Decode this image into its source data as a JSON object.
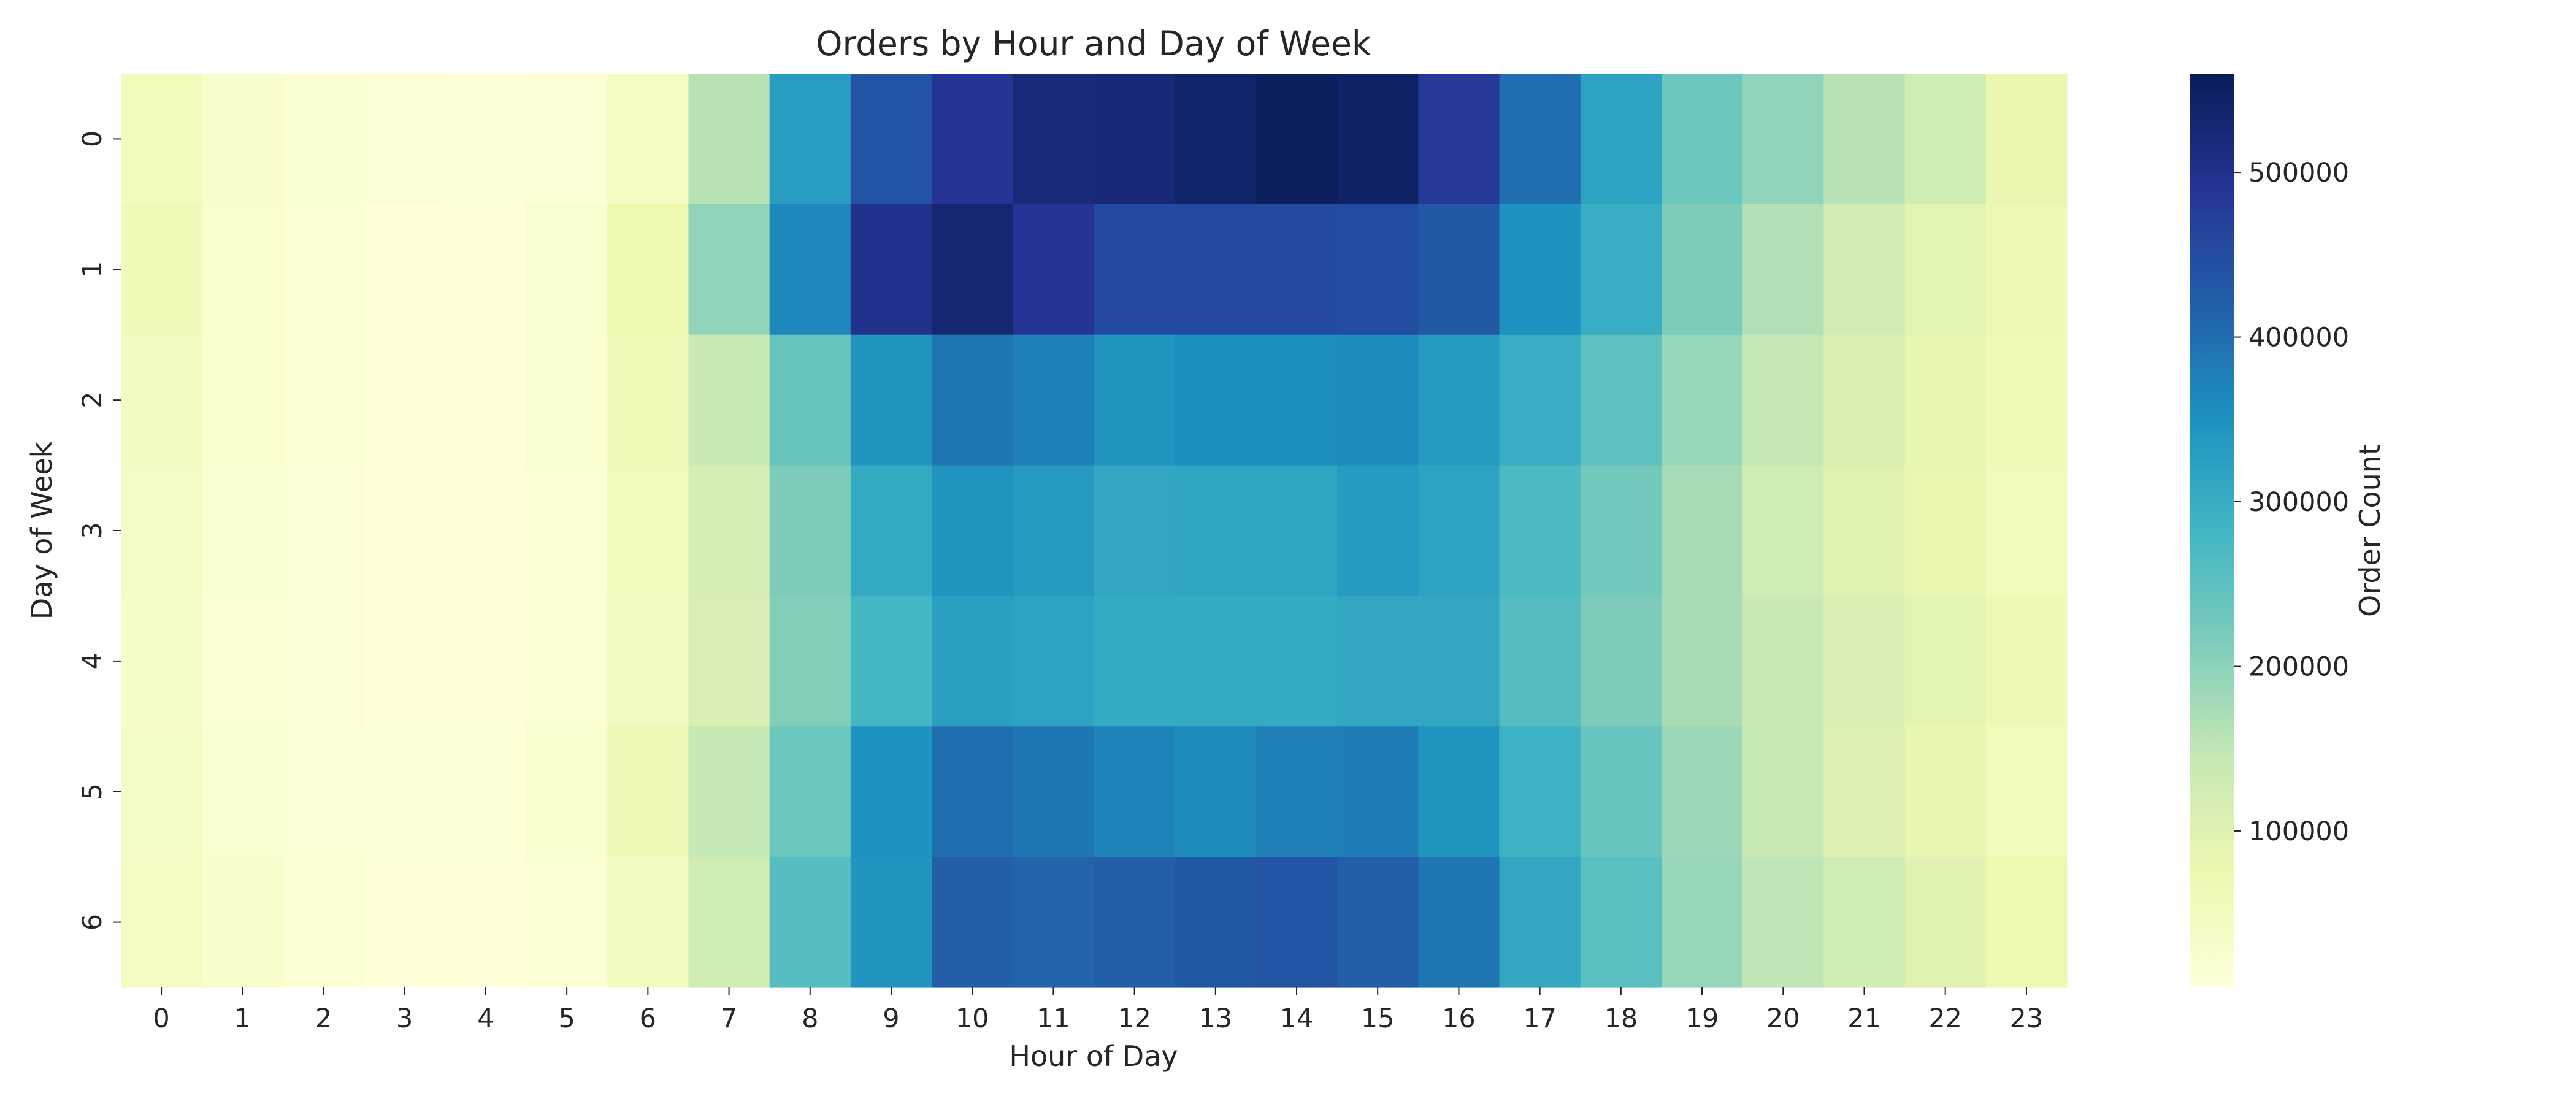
{
  "chart_data": {
    "type": "heatmap",
    "title": "Orders by Hour and Day of Week",
    "xlabel": "Hour of Day",
    "ylabel": "Day of Week",
    "x_categories": [
      "0",
      "1",
      "2",
      "3",
      "4",
      "5",
      "6",
      "7",
      "8",
      "9",
      "10",
      "11",
      "12",
      "13",
      "14",
      "15",
      "16",
      "17",
      "18",
      "19",
      "20",
      "21",
      "22",
      "23"
    ],
    "y_categories": [
      "0",
      "1",
      "2",
      "3",
      "4",
      "5",
      "6"
    ],
    "values": [
      [
        55000,
        30000,
        18000,
        10000,
        9000,
        12000,
        45000,
        160000,
        330000,
        440000,
        490000,
        520000,
        525000,
        540000,
        555000,
        545000,
        480000,
        400000,
        320000,
        235000,
        195000,
        160000,
        130000,
        80000
      ],
      [
        60000,
        25000,
        14000,
        5000,
        5000,
        20000,
        75000,
        195000,
        365000,
        500000,
        530000,
        490000,
        455000,
        455000,
        455000,
        450000,
        430000,
        350000,
        300000,
        215000,
        165000,
        125000,
        95000,
        65000
      ],
      [
        48000,
        22000,
        13000,
        5000,
        5000,
        18000,
        60000,
        140000,
        240000,
        345000,
        390000,
        375000,
        345000,
        355000,
        355000,
        360000,
        335000,
        300000,
        250000,
        190000,
        145000,
        110000,
        85000,
        60000
      ],
      [
        42000,
        18000,
        11000,
        5000,
        5000,
        14000,
        55000,
        120000,
        215000,
        305000,
        345000,
        335000,
        310000,
        315000,
        315000,
        335000,
        320000,
        270000,
        225000,
        175000,
        130000,
        100000,
        80000,
        55000
      ],
      [
        38000,
        16000,
        11000,
        5000,
        5000,
        13000,
        50000,
        115000,
        210000,
        280000,
        325000,
        320000,
        305000,
        305000,
        305000,
        310000,
        310000,
        260000,
        215000,
        175000,
        140000,
        115000,
        95000,
        65000
      ],
      [
        42000,
        18000,
        11000,
        8000,
        8000,
        24000,
        68000,
        145000,
        235000,
        350000,
        400000,
        390000,
        370000,
        360000,
        375000,
        380000,
        345000,
        290000,
        240000,
        185000,
        140000,
        105000,
        85000,
        55000
      ],
      [
        45000,
        28000,
        15000,
        5000,
        5000,
        14000,
        48000,
        130000,
        260000,
        345000,
        420000,
        415000,
        420000,
        430000,
        440000,
        420000,
        390000,
        310000,
        255000,
        190000,
        150000,
        130000,
        100000,
        75000
      ]
    ],
    "colorbar": {
      "label": "Order Count",
      "vmin": 5000,
      "vmax": 560000,
      "ticks": [
        100000,
        200000,
        300000,
        400000,
        500000
      ],
      "tick_labels": [
        "100000",
        "200000",
        "300000",
        "400000",
        "500000"
      ]
    },
    "colormap": "YlGnBu",
    "colormap_stops": [
      "#ffffd9",
      "#edf8b1",
      "#c7e9b4",
      "#7fcdbb",
      "#41b6c4",
      "#1d91c0",
      "#225ea8",
      "#253494",
      "#081d58"
    ]
  }
}
